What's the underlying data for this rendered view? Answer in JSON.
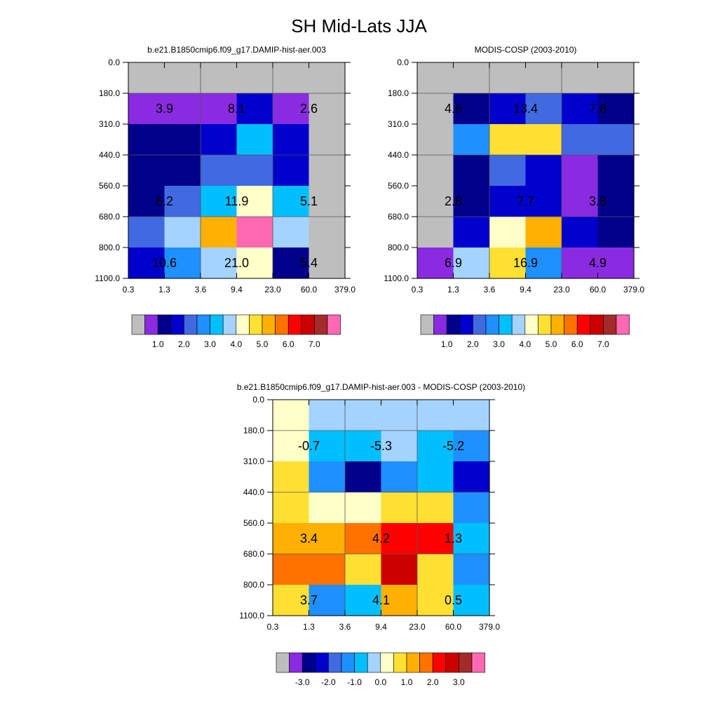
{
  "figure": {
    "title": "SH Mid-Lats JJA"
  },
  "palette": {
    "c0": "#bebebe",
    "c1": "#8a2be2",
    "c2": "#00008b",
    "c3": "#0000cd",
    "c4": "#4169e1",
    "c5": "#1e90ff",
    "c6": "#00bfff",
    "c7": "#a4d3ff",
    "c8": "#ffffc8",
    "c9": "#ffe033",
    "c10": "#ffb000",
    "c11": "#ff7200",
    "c12": "#ff0000",
    "c13": "#cd0000",
    "c14": "#a52a2a",
    "c15": "#ff69b4"
  },
  "chart_data": [
    {
      "type": "heatmap",
      "title": "b.e21.B1850cmip6.f09_g17.DAMIP-hist-aer.003",
      "x_ticks": [
        "0.3",
        "1.3",
        "3.6",
        "9.4",
        "23.0",
        "60.0",
        "379.0"
      ],
      "y_ticks": [
        "0.0",
        "180.0",
        "310.0",
        "440.0",
        "560.0",
        "680.0",
        "800.0",
        "1100.0"
      ],
      "cells": [
        [
          "c0",
          "c0",
          "c0",
          "c0",
          "c0",
          "c0"
        ],
        [
          "c1",
          "c1",
          "c1",
          "c3",
          "c1",
          "c0"
        ],
        [
          "c2",
          "c2",
          "c3",
          "c6",
          "c3",
          "c0"
        ],
        [
          "c2",
          "c2",
          "c4",
          "c4",
          "c3",
          "c0"
        ],
        [
          "c2",
          "c4",
          "c6",
          "c8",
          "c6",
          "c0"
        ],
        [
          "c4",
          "c7",
          "c10",
          "c15",
          "c7",
          "c0"
        ],
        [
          "c3",
          "c5",
          "c7",
          "c8",
          "c2",
          "c0"
        ]
      ],
      "box_values": [
        {
          "value": "3.9",
          "col": 1,
          "row": 1
        },
        {
          "value": "8.1",
          "col": 3,
          "row": 1
        },
        {
          "value": "2.6",
          "col": 5,
          "row": 1
        },
        {
          "value": "6.2",
          "col": 1,
          "row": 4
        },
        {
          "value": "11.9",
          "col": 3,
          "row": 4
        },
        {
          "value": "5.1",
          "col": 5,
          "row": 4
        },
        {
          "value": "10.6",
          "col": 1,
          "row": 6
        },
        {
          "value": "21.0",
          "col": 3,
          "row": 6
        },
        {
          "value": "5.4",
          "col": 5,
          "row": 6
        }
      ],
      "colorbar": {
        "colors": [
          "c0",
          "c1",
          "c2",
          "c3",
          "c4",
          "c5",
          "c6",
          "c7",
          "c8",
          "c9",
          "c10",
          "c11",
          "c12",
          "c13",
          "c14",
          "c15"
        ],
        "labels": [
          {
            "text": "1.0",
            "boundary": 2
          },
          {
            "text": "2.0",
            "boundary": 4
          },
          {
            "text": "3.0",
            "boundary": 6
          },
          {
            "text": "4.0",
            "boundary": 8
          },
          {
            "text": "5.0",
            "boundary": 10
          },
          {
            "text": "6.0",
            "boundary": 12
          },
          {
            "text": "7.0",
            "boundary": 14
          }
        ]
      }
    },
    {
      "type": "heatmap",
      "title": "MODIS-COSP (2003-2010)",
      "x_ticks": [
        "0.3",
        "1.3",
        "3.6",
        "9.4",
        "23.0",
        "60.0",
        "379.0"
      ],
      "y_ticks": [
        "0.0",
        "180.0",
        "310.0",
        "440.0",
        "560.0",
        "680.0",
        "800.0",
        "1100.0"
      ],
      "cells": [
        [
          "c0",
          "c0",
          "c0",
          "c0",
          "c0",
          "c0"
        ],
        [
          "c0",
          "c2",
          "c3",
          "c4",
          "c3",
          "c2"
        ],
        [
          "c0",
          "c5",
          "c9",
          "c9",
          "c4",
          "c4"
        ],
        [
          "c0",
          "c2",
          "c4",
          "c3",
          "c1",
          "c2"
        ],
        [
          "c0",
          "c2",
          "c3",
          "c3",
          "c1",
          "c2"
        ],
        [
          "c0",
          "c3",
          "c8",
          "c10",
          "c3",
          "c2"
        ],
        [
          "c1",
          "c7",
          "c9",
          "c5",
          "c1",
          "c1"
        ]
      ],
      "box_values": [
        {
          "value": "4.6",
          "col": 1,
          "row": 1
        },
        {
          "value": "13.4",
          "col": 3,
          "row": 1
        },
        {
          "value": "7.8",
          "col": 5,
          "row": 1
        },
        {
          "value": "2.8",
          "col": 1,
          "row": 4
        },
        {
          "value": "7.7",
          "col": 3,
          "row": 4
        },
        {
          "value": "3.8",
          "col": 5,
          "row": 4
        },
        {
          "value": "6.9",
          "col": 1,
          "row": 6
        },
        {
          "value": "16.9",
          "col": 3,
          "row": 6
        },
        {
          "value": "4.9",
          "col": 5,
          "row": 6
        }
      ],
      "colorbar": {
        "colors": [
          "c0",
          "c1",
          "c2",
          "c3",
          "c4",
          "c5",
          "c6",
          "c7",
          "c8",
          "c9",
          "c10",
          "c11",
          "c12",
          "c13",
          "c14",
          "c15"
        ],
        "labels": [
          {
            "text": "1.0",
            "boundary": 2
          },
          {
            "text": "2.0",
            "boundary": 4
          },
          {
            "text": "3.0",
            "boundary": 6
          },
          {
            "text": "4.0",
            "boundary": 8
          },
          {
            "text": "5.0",
            "boundary": 10
          },
          {
            "text": "6.0",
            "boundary": 12
          },
          {
            "text": "7.0",
            "boundary": 14
          }
        ]
      }
    },
    {
      "type": "heatmap",
      "title": "b.e21.B1850cmip6.f09_g17.DAMIP-hist-aer.003 - MODIS-COSP (2003-2010)",
      "x_ticks": [
        "0.3",
        "1.3",
        "3.6",
        "9.4",
        "23.0",
        "60.0",
        "379.0"
      ],
      "y_ticks": [
        "0.0",
        "180.0",
        "310.0",
        "440.0",
        "560.0",
        "680.0",
        "800.0",
        "1100.0"
      ],
      "cells": [
        [
          "c8",
          "c7",
          "c7",
          "c7",
          "c7",
          "c7"
        ],
        [
          "c8",
          "c6",
          "c6",
          "c7",
          "c6",
          "c5"
        ],
        [
          "c9",
          "c5",
          "c2",
          "c5",
          "c6",
          "c3"
        ],
        [
          "c9",
          "c8",
          "c8",
          "c9",
          "c9",
          "c5"
        ],
        [
          "c10",
          "c10",
          "c11",
          "c12",
          "c12",
          "c6"
        ],
        [
          "c11",
          "c11",
          "c9",
          "c13",
          "c9",
          "c5"
        ],
        [
          "c9",
          "c5",
          "c6",
          "c10",
          "c9",
          "c6"
        ]
      ],
      "box_values": [
        {
          "value": "-0.7",
          "col": 1,
          "row": 1
        },
        {
          "value": "-5.3",
          "col": 3,
          "row": 1
        },
        {
          "value": "-5.2",
          "col": 5,
          "row": 1
        },
        {
          "value": "3.4",
          "col": 1,
          "row": 4
        },
        {
          "value": "4.2",
          "col": 3,
          "row": 4
        },
        {
          "value": "1.3",
          "col": 5,
          "row": 4
        },
        {
          "value": "3.7",
          "col": 1,
          "row": 6
        },
        {
          "value": "4.1",
          "col": 3,
          "row": 6
        },
        {
          "value": "0.5",
          "col": 5,
          "row": 6
        }
      ],
      "colorbar": {
        "colors": [
          "c0",
          "c1",
          "c2",
          "c3",
          "c4",
          "c5",
          "c6",
          "c7",
          "c8",
          "c9",
          "c10",
          "c11",
          "c12",
          "c13",
          "c14",
          "c15"
        ],
        "labels": [
          {
            "text": "-3.0",
            "boundary": 2
          },
          {
            "text": "-2.0",
            "boundary": 4
          },
          {
            "text": "-1.0",
            "boundary": 6
          },
          {
            "text": "0.0",
            "boundary": 8
          },
          {
            "text": "1.0",
            "boundary": 10
          },
          {
            "text": "2.0",
            "boundary": 12
          },
          {
            "text": "3.0",
            "boundary": 14
          }
        ]
      }
    }
  ]
}
